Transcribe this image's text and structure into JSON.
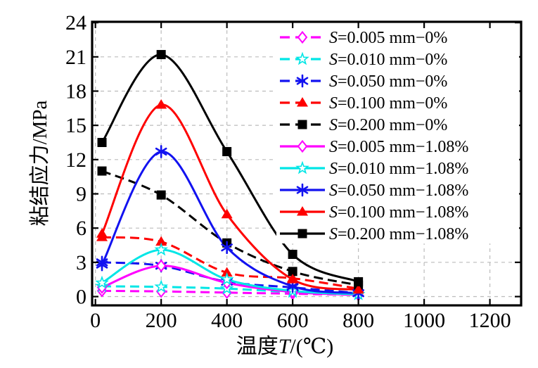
{
  "chart_data": {
    "type": "line",
    "title": "",
    "xlabel": "温度T/(℃)",
    "xlabel_parts": {
      "prefix": "温度",
      "italic": "T",
      "suffix": "/(℃)"
    },
    "ylabel": "粘结应力/MPa",
    "x": [
      20,
      200,
      400,
      600,
      800
    ],
    "x_ticks": [
      0,
      200,
      400,
      600,
      800,
      1000,
      1200
    ],
    "y_ticks": [
      0,
      3,
      6,
      9,
      12,
      15,
      18,
      21,
      24
    ],
    "xlim": [
      -10,
      1295
    ],
    "ylim": [
      -0.77,
      24.07
    ],
    "grid": true,
    "grid_color": "#bcbcbc",
    "legend_position": "top-right",
    "series": [
      {
        "label": "S=0.005 mm−0%",
        "color": "#ff00ff",
        "line": "dashed",
        "marker": "diamond-open",
        "values": [
          0.5,
          0.45,
          0.35,
          0.25,
          0.15
        ]
      },
      {
        "label": "S=0.010 mm−0%",
        "color": "#00e6e6",
        "line": "dashed",
        "marker": "star-open",
        "values": [
          0.9,
          0.85,
          0.7,
          0.4,
          0.2
        ]
      },
      {
        "label": "S=0.050 mm−0%",
        "color": "#1212f0",
        "line": "dashed",
        "marker": "asterisk",
        "values": [
          3.0,
          2.7,
          1.3,
          0.8,
          0.3
        ]
      },
      {
        "label": "S=0.100 mm−0%",
        "color": "#fe0000",
        "line": "dashed",
        "marker": "triangle-filled",
        "values": [
          5.2,
          4.8,
          2.1,
          1.6,
          0.7
        ]
      },
      {
        "label": "S=0.200 mm−0%",
        "color": "#000000",
        "line": "dashed",
        "marker": "square-filled",
        "values": [
          11.0,
          8.9,
          4.7,
          2.2,
          1.0
        ]
      },
      {
        "label": "S=0.005 mm−1.08%",
        "color": "#ff00ff",
        "line": "solid",
        "marker": "diamond-open",
        "values": [
          0.8,
          2.7,
          1.2,
          0.4,
          0.15
        ]
      },
      {
        "label": "S=0.010 mm−1.08%",
        "color": "#00e6e6",
        "line": "solid",
        "marker": "star-open",
        "values": [
          1.2,
          4.1,
          1.5,
          0.5,
          0.2
        ]
      },
      {
        "label": "S=0.050 mm−1.08%",
        "color": "#1212f0",
        "line": "solid",
        "marker": "asterisk",
        "values": [
          2.8,
          12.7,
          4.3,
          0.9,
          0.3
        ]
      },
      {
        "label": "S=0.100 mm−1.08%",
        "color": "#fe0000",
        "line": "solid",
        "marker": "triangle-filled",
        "values": [
          5.5,
          16.8,
          7.2,
          1.5,
          0.6
        ]
      },
      {
        "label": "S=0.200 mm−1.08%",
        "color": "#000000",
        "line": "solid",
        "marker": "square-filled",
        "values": [
          13.5,
          21.2,
          12.7,
          3.7,
          1.3
        ]
      }
    ]
  }
}
